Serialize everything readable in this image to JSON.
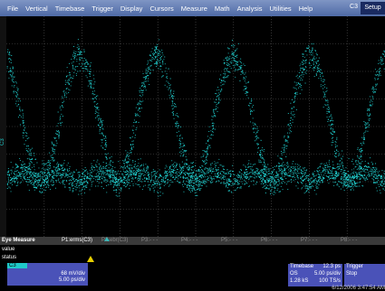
{
  "menu": {
    "items": [
      "File",
      "Vertical",
      "Timebase",
      "Trigger",
      "Display",
      "Cursors",
      "Measure",
      "Math",
      "Analysis",
      "Utilities",
      "Help"
    ],
    "channel": "C3",
    "setup": "Setup"
  },
  "grid": {
    "channel_label": "C3"
  },
  "measure": {
    "title": "Eye Measure",
    "params": [
      "P1:erms(C3)",
      "P2:ebr(C3)",
      "P3:- - -",
      "P4:- - -",
      "P5:- - -",
      "P6:- - -",
      "P7:- - -",
      "P8:- - -"
    ],
    "rows": [
      "value",
      "status"
    ]
  },
  "channel_box": {
    "label": "C3",
    "scale": "68 mV/div",
    "timebase": "5.00 ps/div"
  },
  "timebase_box": {
    "title": "Timebase",
    "delay": "12.3 ps",
    "sample_mode": "OS",
    "time_div": "5.00 ps/div",
    "points": "1.28 kS",
    "rate": "100 TS/s"
  },
  "trigger_box": {
    "title": "Trigger",
    "mode": "Stop"
  },
  "timestamp": "6/12/2006 3:47:54 AM"
}
